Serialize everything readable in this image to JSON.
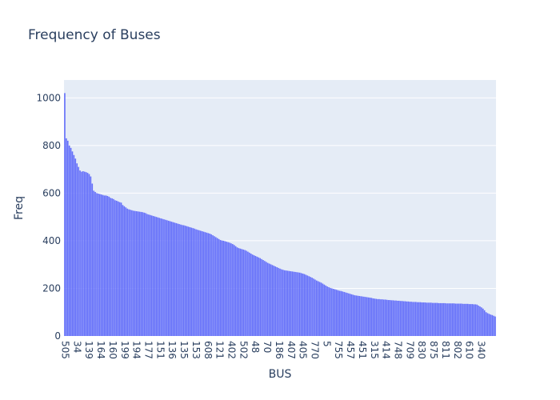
{
  "chart_data": {
    "type": "bar",
    "title": "Frequency of Buses",
    "xlabel": "BUS",
    "ylabel": "Freq",
    "ylim": [
      0,
      1075
    ],
    "y_ticks": [
      0,
      200,
      400,
      600,
      800,
      1000
    ],
    "x_tick_labels": [
      "505",
      "34",
      "139",
      "164",
      "160",
      "199",
      "194",
      "177",
      "151",
      "136",
      "135",
      "153",
      "608",
      "121",
      "402",
      "502",
      "48",
      "70",
      "186",
      "407",
      "405",
      "770",
      "5",
      "755",
      "457",
      "451",
      "315",
      "414",
      "748",
      "709",
      "830",
      "875",
      "811",
      "802",
      "610",
      "340"
    ],
    "bar_color": "#636efa",
    "plot_bg": "#e5ecf6",
    "grid": true,
    "series": [
      {
        "values": [
          1020,
          830,
          820,
          800,
          790,
          775,
          760,
          745,
          725,
          710,
          695,
          690,
          692,
          690,
          688,
          685,
          680,
          670,
          640,
          610,
          605,
          600,
          598,
          596,
          594,
          592,
          590,
          590,
          588,
          585,
          580,
          578,
          575,
          570,
          568,
          565,
          562,
          560,
          550,
          545,
          540,
          535,
          532,
          530,
          528,
          526,
          525,
          524,
          523,
          522,
          521,
          520,
          518,
          516,
          512,
          510,
          508,
          506,
          504,
          502,
          500,
          498,
          496,
          494,
          492,
          490,
          488,
          486,
          484,
          482,
          480,
          478,
          476,
          474,
          472,
          470,
          468,
          466,
          465,
          463,
          461,
          459,
          457,
          455,
          453,
          451,
          448,
          446,
          444,
          442,
          440,
          438,
          436,
          434,
          432,
          430,
          427,
          423,
          419,
          415,
          411,
          407,
          403,
          401,
          400,
          398,
          396,
          394,
          392,
          389,
          386,
          382,
          377,
          372,
          369,
          367,
          365,
          363,
          361,
          358,
          354,
          350,
          346,
          342,
          339,
          336,
          333,
          330,
          327,
          323,
          319,
          315,
          311,
          307,
          304,
          301,
          298,
          295,
          292,
          289,
          286,
          283,
          280,
          278,
          276,
          275,
          274,
          273,
          272,
          271,
          270,
          269,
          268,
          267,
          266,
          264,
          262,
          260,
          257,
          254,
          251,
          248,
          245,
          241,
          237,
          233,
          230,
          227,
          224,
          220,
          216,
          212,
          208,
          205,
          202,
          200,
          198,
          196,
          194,
          192,
          190,
          189,
          187,
          185,
          183,
          181,
          179,
          177,
          175,
          173,
          171,
          170,
          169,
          168,
          167,
          166,
          165,
          164,
          163,
          162,
          161,
          160,
          158,
          157,
          156,
          155,
          155,
          154,
          154,
          153,
          153,
          152,
          151,
          151,
          150,
          150,
          149,
          149,
          148,
          148,
          147,
          147,
          146,
          146,
          145,
          145,
          144,
          144,
          143,
          143,
          143,
          142,
          142,
          142,
          141,
          141,
          141,
          140,
          140,
          140,
          140,
          139,
          139,
          139,
          139,
          138,
          138,
          138,
          138,
          138,
          137,
          137,
          137,
          137,
          137,
          137,
          136,
          136,
          136,
          136,
          136,
          135,
          135,
          135,
          135,
          134,
          134,
          134,
          133,
          133,
          132,
          128,
          124,
          120,
          115,
          108,
          100,
          96,
          93,
          90,
          88,
          85,
          82
        ]
      }
    ]
  }
}
